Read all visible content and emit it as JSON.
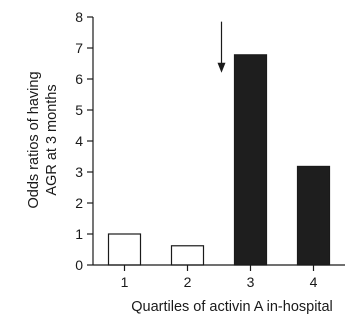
{
  "chart_data": {
    "type": "bar",
    "categories": [
      "1",
      "2",
      "3",
      "4"
    ],
    "values": [
      1.0,
      0.62,
      6.78,
      3.18
    ],
    "bar_fills": [
      "white",
      "white",
      "black",
      "black"
    ],
    "ylabel_lines": [
      "Odds ratios of having",
      "AGR at 3 months"
    ],
    "xlabel": "Quartiles of activin A in-hospital",
    "ylim": [
      0,
      8
    ],
    "yticks": [
      "0",
      "1",
      "2",
      "3",
      "4",
      "5",
      "6",
      "7",
      "8"
    ],
    "grid": false,
    "annotation": {
      "type": "arrow",
      "points_to_category": "3"
    }
  },
  "colors": {
    "filled_bar": "#1e1e1e",
    "open_bar": "#ffffff",
    "axis": "#1a1a1a"
  }
}
